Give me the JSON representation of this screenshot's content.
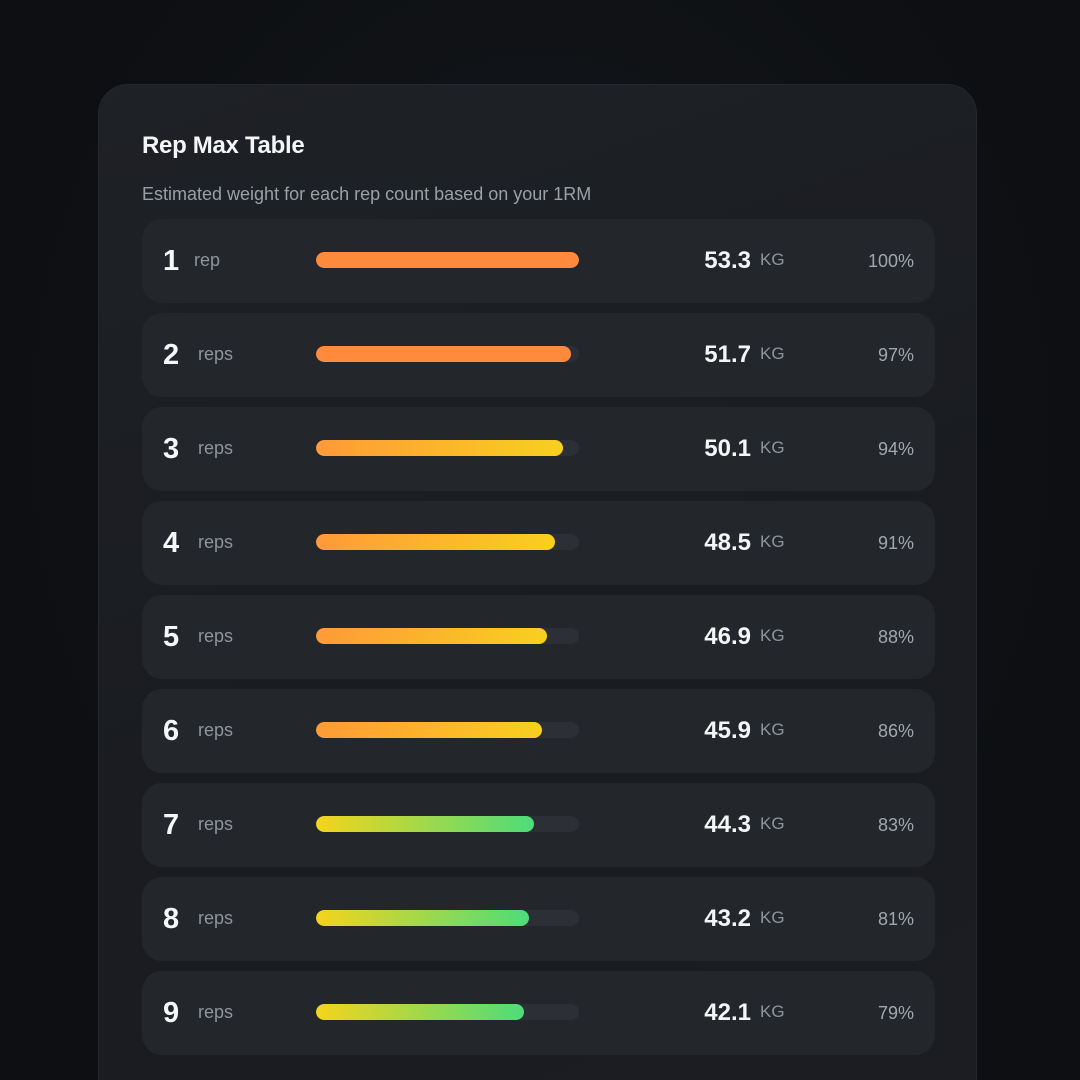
{
  "card": {
    "title": "Rep Max Table",
    "subtitle": "Estimated weight for each rep count based on your 1RM"
  },
  "rows": [
    {
      "reps": "1",
      "unit": "rep",
      "weight": "53.3",
      "weight_unit": "KG",
      "percent_label": "100%",
      "progress": 1.0,
      "gradient": [
        "#ff8a3d",
        "#ff8a3d"
      ]
    },
    {
      "reps": "2",
      "unit": "reps",
      "weight": "51.7",
      "weight_unit": "KG",
      "percent_label": "97%",
      "progress": 0.97,
      "gradient": [
        "#ff8a3d",
        "#ff8a3d"
      ]
    },
    {
      "reps": "3",
      "unit": "reps",
      "weight": "50.1",
      "weight_unit": "KG",
      "percent_label": "94%",
      "progress": 0.94,
      "gradient": [
        "#ff9a38",
        "#f8d01f"
      ]
    },
    {
      "reps": "4",
      "unit": "reps",
      "weight": "48.5",
      "weight_unit": "KG",
      "percent_label": "91%",
      "progress": 0.91,
      "gradient": [
        "#ff9a38",
        "#f8d01f"
      ]
    },
    {
      "reps": "5",
      "unit": "reps",
      "weight": "46.9",
      "weight_unit": "KG",
      "percent_label": "88%",
      "progress": 0.88,
      "gradient": [
        "#ff9a38",
        "#f8d01f"
      ]
    },
    {
      "reps": "6",
      "unit": "reps",
      "weight": "45.9",
      "weight_unit": "KG",
      "percent_label": "86%",
      "progress": 0.86,
      "gradient": [
        "#ff9a38",
        "#f8d01f"
      ]
    },
    {
      "reps": "7",
      "unit": "reps",
      "weight": "44.3",
      "weight_unit": "KG",
      "percent_label": "83%",
      "progress": 0.83,
      "gradient": [
        "#f5d41c",
        "#4ddc7a"
      ]
    },
    {
      "reps": "8",
      "unit": "reps",
      "weight": "43.2",
      "weight_unit": "KG",
      "percent_label": "81%",
      "progress": 0.81,
      "gradient": [
        "#f5d41c",
        "#4ddc7a"
      ]
    },
    {
      "reps": "9",
      "unit": "reps",
      "weight": "42.1",
      "weight_unit": "KG",
      "percent_label": "79%",
      "progress": 0.79,
      "gradient": [
        "#f5d41c",
        "#4ddc7a"
      ]
    }
  ]
}
